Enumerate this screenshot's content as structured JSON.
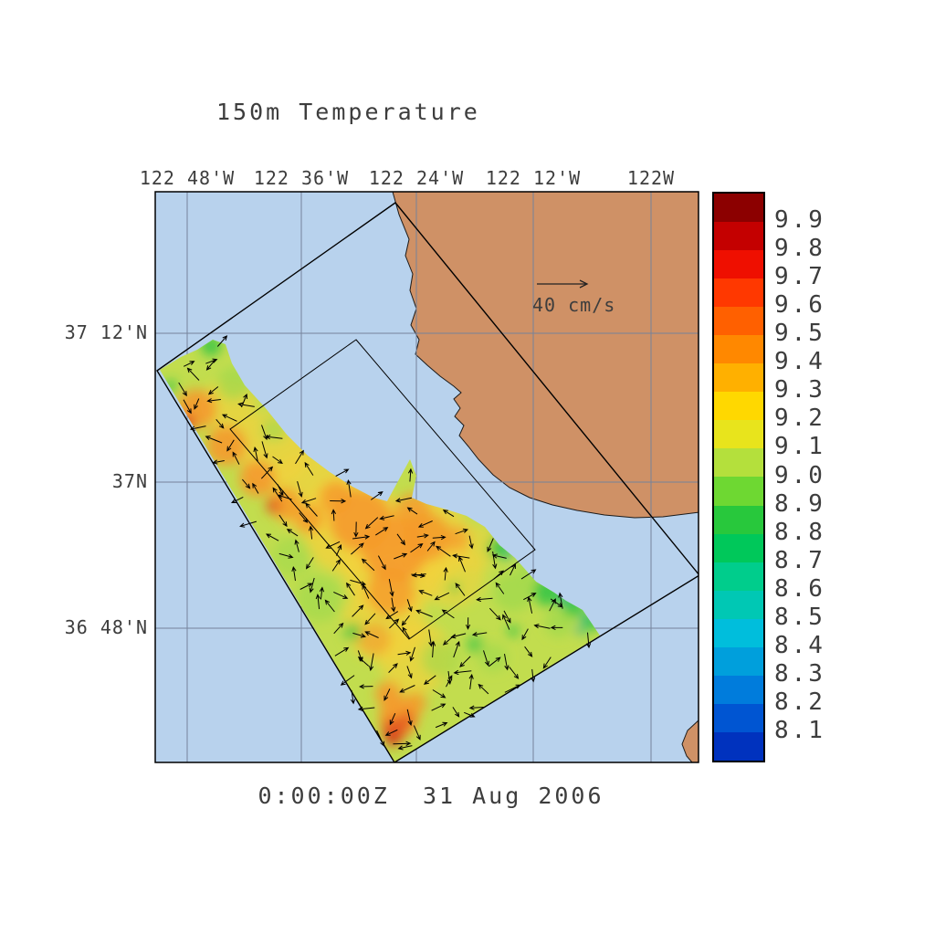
{
  "chart_data": {
    "type": "heatmap",
    "title": "150m Temperature",
    "timestamp_label": "0:00:00Z  31 Aug 2006",
    "x_tick_labels": [
      "122 48'W",
      "122 36'W",
      "122 24'W",
      "122 12'W",
      "122W"
    ],
    "y_tick_labels": [
      "37 12'N",
      "37N",
      "36 48'N"
    ],
    "vector_reference": {
      "label": "40 cm/s",
      "speed_cm_s": 40
    },
    "colorbar": {
      "tick_labels": [
        "9.9",
        "9.8",
        "9.7",
        "9.6",
        "9.5",
        "9.4",
        "9.3",
        "9.2",
        "9.1",
        "9.0",
        "8.9",
        "8.8",
        "8.7",
        "8.6",
        "8.5",
        "8.4",
        "8.3",
        "8.2",
        "8.1"
      ],
      "tick_values": [
        9.9,
        9.8,
        9.7,
        9.6,
        9.5,
        9.4,
        9.3,
        9.2,
        9.1,
        9.0,
        8.9,
        8.8,
        8.7,
        8.6,
        8.5,
        8.4,
        8.3,
        8.2,
        8.1
      ],
      "band_colors_top_to_bottom": [
        "#8c0000",
        "#c40000",
        "#ef0f00",
        "#ff3800",
        "#ff6000",
        "#ff8800",
        "#ffb000",
        "#ffd800",
        "#e8e41c",
        "#b4e03c",
        "#6ed832",
        "#28c83c",
        "#00c85a",
        "#00cd8c",
        "#00c8b4",
        "#00bedc",
        "#009fdc",
        "#007cdc",
        "#0055d2",
        "#0032be"
      ],
      "value_range": [
        8.1,
        9.9
      ]
    },
    "colors": {
      "ocean": "#b8d2ed",
      "land": "#cf9166",
      "field_base": "#c2dd4e",
      "grid": "#76839b",
      "frame": "#000000",
      "arrow": "#000000",
      "text": "#3d3d3d"
    }
  }
}
